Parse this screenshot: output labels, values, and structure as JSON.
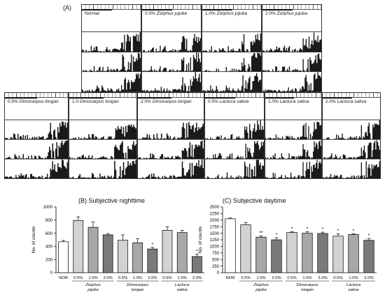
{
  "panel_a_label": "(A)",
  "actograms": [
    {
      "prefix": "Normal",
      "name": ""
    },
    {
      "prefix": "0.5%",
      "name": "Ziziphus jujuba"
    },
    {
      "prefix": "1.0%",
      "name": "Ziziphus jujuba"
    },
    {
      "prefix": "2.0%",
      "name": "Ziziphus jujuba"
    },
    {
      "prefix": "0.5%",
      "name": "Dimocarpus longan"
    },
    {
      "prefix": "1.0",
      "name": "Dimocarpus longan"
    },
    {
      "prefix": "2.0%",
      "name": "Dimocarpus longan"
    },
    {
      "prefix": "0.5%",
      "name": "Lactuca sativa"
    },
    {
      "prefix": "1.0%",
      "name": "Lactuca sativa"
    },
    {
      "prefix": "2.0%",
      "name": "Lactuca sativa"
    }
  ],
  "chart_data": [
    {
      "type": "bar",
      "title": "(B) Subjective nighttime",
      "ylabel": "No. of counts",
      "xlabel": "",
      "ylim": [
        0,
        1000
      ],
      "yticks": [
        0,
        200,
        400,
        600,
        800,
        1000
      ],
      "categories": [
        "NOR",
        "0.5%",
        "1.0%",
        "2.0%",
        "0.5%",
        "1.0%",
        "2.0%",
        "0.5%",
        "1.0%",
        "2.0%"
      ],
      "groups": [
        {
          "label": "Ziziphus jujuba",
          "indices": [
            1,
            2,
            3
          ]
        },
        {
          "label": "Dimocarpus longan",
          "indices": [
            4,
            5,
            6
          ]
        },
        {
          "label": "Lactuca sativa",
          "indices": [
            7,
            8,
            9
          ]
        }
      ],
      "values": [
        470,
        795,
        690,
        575,
        495,
        455,
        360,
        645,
        610,
        245
      ],
      "errors": [
        20,
        55,
        80,
        20,
        80,
        60,
        25,
        50,
        35,
        35
      ],
      "significance": [
        "",
        "",
        "",
        "",
        "",
        "",
        "*",
        "",
        "",
        "*"
      ],
      "colors": [
        "#ffffff",
        "#d2d2d2",
        "#a8a8a8",
        "#7a7a7a",
        "#d2d2d2",
        "#a8a8a8",
        "#7a7a7a",
        "#d2d2d2",
        "#a8a8a8",
        "#7a7a7a"
      ]
    },
    {
      "type": "bar",
      "title": "(C) Subjective daytime",
      "ylabel": "No. of counts",
      "xlabel": "",
      "ylim": [
        0,
        2500
      ],
      "yticks": [
        0,
        250,
        500,
        750,
        1000,
        1250,
        1500,
        1750,
        2000,
        2250,
        2500
      ],
      "categories": [
        "NOR",
        "0.5%",
        "1.0%",
        "2.0%",
        "0.5%",
        "1.0%",
        "2.0%",
        "0.5%",
        "1.0%",
        "2.0%"
      ],
      "groups": [
        {
          "label": "Ziziphus jujuba",
          "indices": [
            1,
            2,
            3
          ]
        },
        {
          "label": "Dimocarpus longan",
          "indices": [
            4,
            5,
            6
          ]
        },
        {
          "label": "Lactuca sativa",
          "indices": [
            7,
            8,
            9
          ]
        }
      ],
      "values": [
        2050,
        1820,
        1350,
        1250,
        1530,
        1500,
        1490,
        1390,
        1450,
        1230
      ],
      "errors": [
        30,
        80,
        50,
        80,
        30,
        60,
        50,
        90,
        30,
        70
      ],
      "significance": [
        "",
        "",
        "**",
        "*",
        "*",
        "*",
        "*",
        "*",
        "*",
        "*"
      ],
      "colors": [
        "#ffffff",
        "#d2d2d2",
        "#a8a8a8",
        "#7a7a7a",
        "#d2d2d2",
        "#a8a8a8",
        "#7a7a7a",
        "#d2d2d2",
        "#a8a8a8",
        "#7a7a7a"
      ]
    }
  ]
}
